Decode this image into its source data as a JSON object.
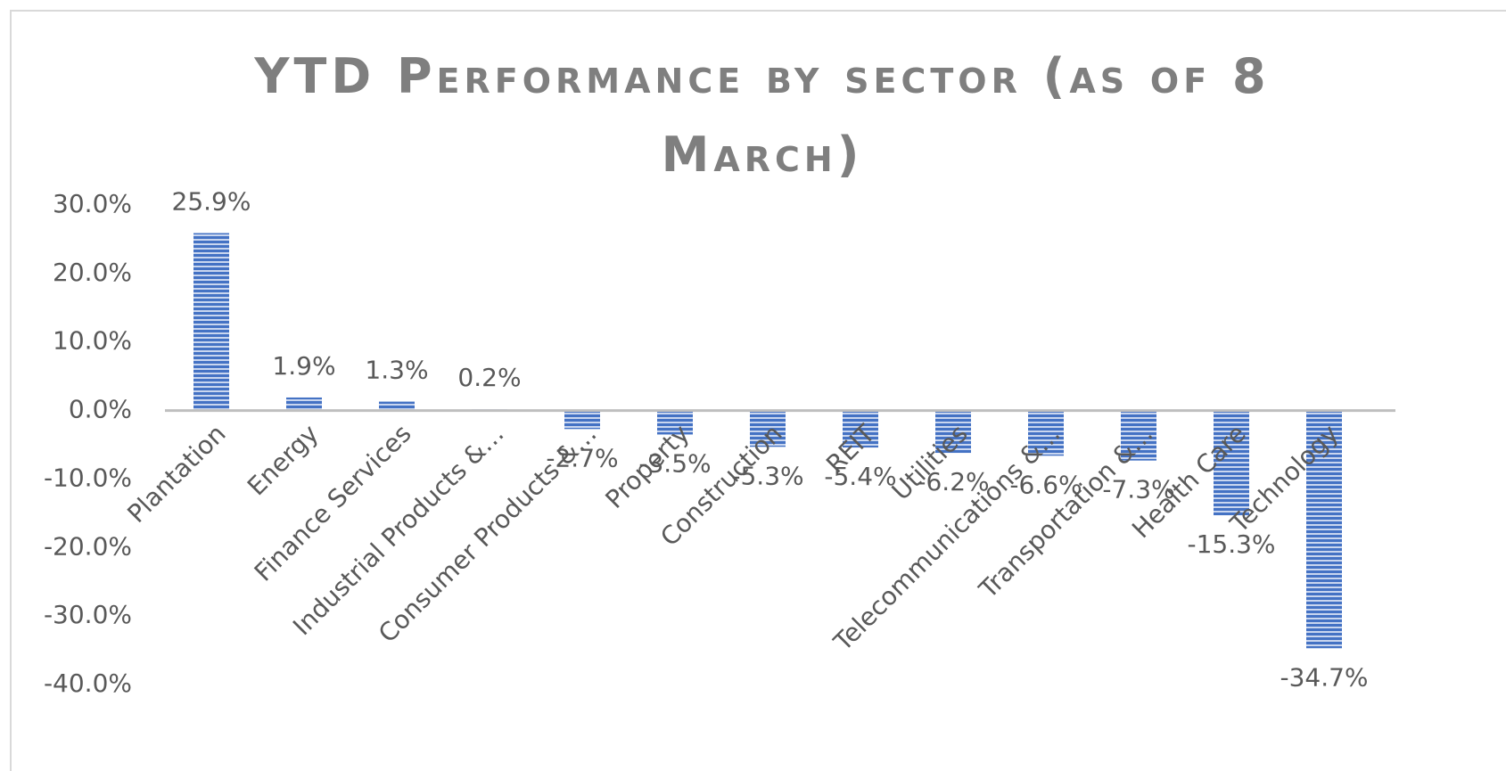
{
  "chart_data": {
    "type": "bar",
    "title": "YTD Performance by sector (as of 8 March)",
    "categories": [
      "Plantation",
      "Energy",
      "Finance Services",
      "Industrial Products &…",
      "Consumer Products &…",
      "Property",
      "Construction",
      "REIT",
      "Utilities",
      "Telecommunications &…",
      "Transportation &…",
      "Health Care",
      "Technology"
    ],
    "values": [
      25.9,
      1.9,
      1.3,
      0.2,
      -2.7,
      -3.5,
      -5.3,
      -5.4,
      -6.2,
      -6.6,
      -7.3,
      -15.3,
      -34.7
    ],
    "value_labels": [
      "25.9%",
      "1.9%",
      "1.3%",
      "0.2%",
      "-2.7%",
      "-3.5%",
      "-5.3%",
      "-5.4%",
      "-6.2%",
      "-6.6%",
      "-7.3%",
      "-15.3%",
      "-34.7%"
    ],
    "color": "#4472c4",
    "ylim": [
      -40,
      30
    ],
    "yticks": [
      {
        "value": -40,
        "label": "-40.0%"
      },
      {
        "value": -30,
        "label": "-30.0%"
      },
      {
        "value": -20,
        "label": "-20.0%"
      },
      {
        "value": -10,
        "label": "-10.0%"
      },
      {
        "value": 0,
        "label": "0.0%"
      },
      {
        "value": 10,
        "label": "10.0%"
      },
      {
        "value": 20,
        "label": "20.0%"
      },
      {
        "value": 30,
        "label": "30.0%"
      }
    ],
    "grid": false
  }
}
